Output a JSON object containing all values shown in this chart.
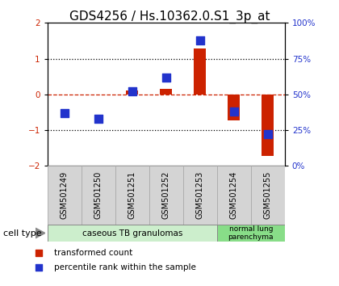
{
  "title": "GDS4256 / Hs.10362.0.S1_3p_at",
  "samples": [
    "GSM501249",
    "GSM501250",
    "GSM501251",
    "GSM501252",
    "GSM501253",
    "GSM501254",
    "GSM501255"
  ],
  "transformed_count": [
    0.0,
    0.0,
    0.1,
    0.15,
    1.28,
    -0.72,
    -1.72
  ],
  "percentile_rank": [
    37,
    33,
    52,
    62,
    88,
    38,
    22
  ],
  "ylim_left": [
    -2,
    2
  ],
  "ylim_right": [
    0,
    100
  ],
  "yticks_left": [
    -2,
    -1,
    0,
    1,
    2
  ],
  "yticks_right": [
    0,
    25,
    50,
    75,
    100
  ],
  "ytick_labels_right": [
    "0%",
    "25%",
    "50%",
    "75%",
    "100%"
  ],
  "hlines": [
    1.0,
    -1.0
  ],
  "red_line_y": 0.0,
  "bar_color": "#cc2200",
  "dot_color": "#2233cc",
  "group1_label": "caseous TB granulomas",
  "group1_count": 5,
  "group1_color": "#cceecc",
  "group2_label": "normal lung\nparenchyma",
  "group2_count": 2,
  "group2_color": "#88dd88",
  "cell_type_label": "cell type",
  "legend_red": "transformed count",
  "legend_blue": "percentile rank within the sample",
  "title_fontsize": 11,
  "tick_fontsize": 7.5,
  "label_fontsize": 7,
  "sample_box_color": "#d4d4d4",
  "sample_box_edge": "#aaaaaa"
}
